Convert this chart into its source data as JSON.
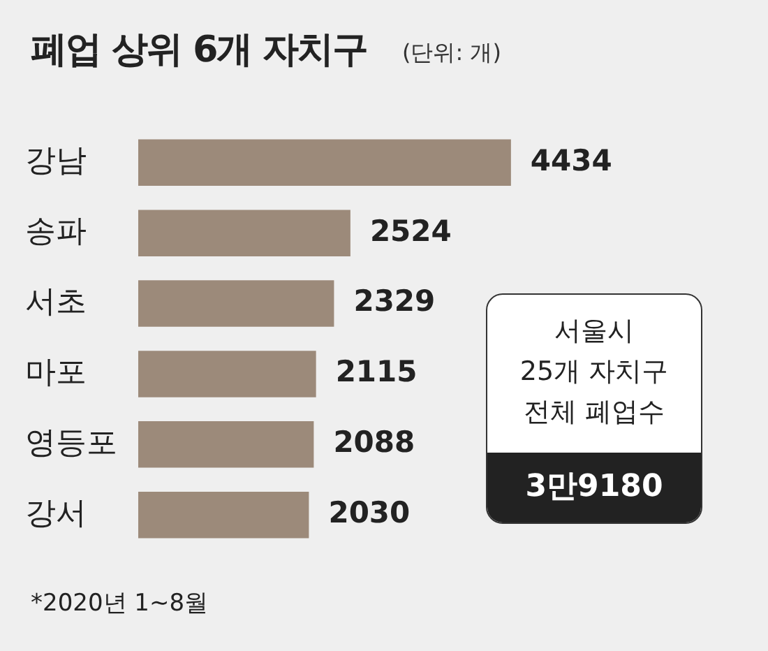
{
  "chart_data": {
    "type": "bar",
    "orientation": "horizontal",
    "title": "폐업 상위 6개 자치구",
    "subtitle": "(단위: 개)",
    "categories": [
      "강남",
      "송파",
      "서초",
      "마포",
      "영등포",
      "강서"
    ],
    "values": [
      4434,
      2524,
      2329,
      2115,
      2088,
      2030
    ],
    "color": "#9c8a7a",
    "data_labels": true,
    "legend": false,
    "tick_labels": "y",
    "annotations": [
      "서울시\n25개 자치구\n전체 폐업수",
      "3만9180",
      "*2020년 1~8월"
    ]
  }
}
